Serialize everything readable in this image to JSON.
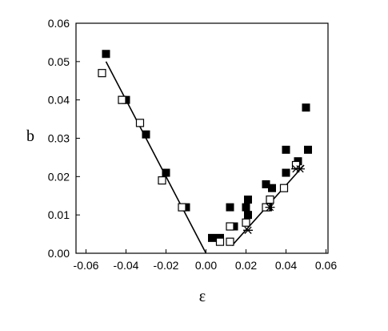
{
  "chart_data": {
    "type": "scatter",
    "title": "",
    "xlabel": "ε",
    "ylabel": "b",
    "xlim": [
      -0.07,
      0.06
    ],
    "ylim": [
      0,
      0.06
    ],
    "xticks": [
      -0.06,
      -0.04,
      -0.02,
      0.0,
      0.02,
      0.04,
      0.06
    ],
    "xtick_labels": [
      "-0.06",
      "-0.04",
      "-0.02",
      "0.00",
      "0.02",
      "0.04",
      "0.06"
    ],
    "yticks": [
      0,
      0.01,
      0.02,
      0.03,
      0.04,
      0.05,
      0.06
    ],
    "ytick_labels": [
      "0.00",
      "0.01",
      "0.02",
      "0.03",
      "0.04",
      "0.05",
      "0.06"
    ],
    "grid": false,
    "legend": "none",
    "colors": {
      "ink": "#000000",
      "background": "#ffffff"
    },
    "series": [
      {
        "marker": "filled-square",
        "points": [
          [
            -0.05,
            0.052
          ],
          [
            -0.04,
            0.04
          ],
          [
            -0.03,
            0.031
          ],
          [
            -0.02,
            0.021
          ],
          [
            -0.01,
            0.012
          ],
          [
            0.003,
            0.004
          ],
          [
            0.007,
            0.004
          ],
          [
            0.012,
            0.012
          ],
          [
            0.014,
            0.007
          ],
          [
            0.02,
            0.012
          ],
          [
            0.021,
            0.014
          ],
          [
            0.021,
            0.01
          ],
          [
            0.03,
            0.018
          ],
          [
            0.031,
            0.012
          ],
          [
            0.033,
            0.017
          ],
          [
            0.04,
            0.021
          ],
          [
            0.04,
            0.027
          ],
          [
            0.046,
            0.024
          ],
          [
            0.05,
            0.038
          ],
          [
            0.051,
            0.027
          ]
        ]
      },
      {
        "marker": "open-square",
        "points": [
          [
            -0.052,
            0.047
          ],
          [
            -0.042,
            0.04
          ],
          [
            -0.033,
            0.034
          ],
          [
            -0.022,
            0.019
          ],
          [
            -0.012,
            0.012
          ],
          [
            0.007,
            0.003
          ],
          [
            0.012,
            0.003
          ],
          [
            0.012,
            0.007
          ],
          [
            0.02,
            0.008
          ],
          [
            0.03,
            0.012
          ],
          [
            0.032,
            0.014
          ],
          [
            0.039,
            0.017
          ],
          [
            0.045,
            0.023
          ]
        ]
      },
      {
        "marker": "star",
        "points": [
          [
            0.021,
            0.006
          ],
          [
            0.032,
            0.012
          ],
          [
            0.045,
            0.022
          ],
          [
            0.047,
            0.022
          ]
        ]
      }
    ],
    "lines": [
      {
        "x": [
          -0.05,
          0.0
        ],
        "y": [
          0.05,
          0.0
        ]
      },
      {
        "x": [
          0.013,
          0.049
        ],
        "y": [
          0.002,
          0.023
        ]
      }
    ]
  }
}
